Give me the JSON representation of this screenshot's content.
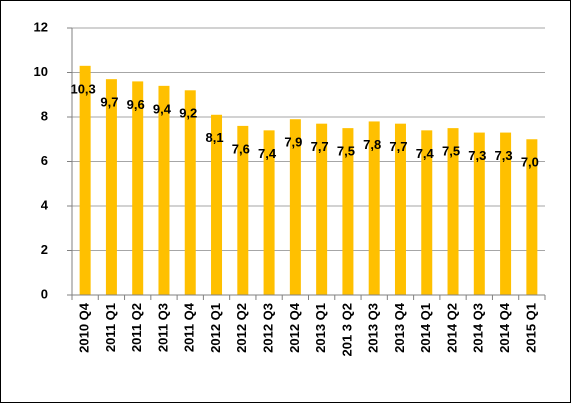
{
  "chart_data": {
    "type": "bar",
    "categories": [
      "2010 Q4",
      "2011 Q1",
      "2011 Q2",
      "2011 Q3",
      "2011 Q4",
      "2012 Q1",
      "2012 Q2",
      "2012 Q3",
      "2012 Q4",
      "2013 Q1",
      "201 3 Q2",
      "2013 Q3",
      "2013 Q4",
      "2014 Q1",
      "2014 Q2",
      "2014 Q3",
      "2014 Q4",
      "2015 Q1"
    ],
    "values": [
      10.3,
      9.7,
      9.6,
      9.4,
      9.2,
      8.1,
      7.6,
      7.4,
      7.9,
      7.7,
      7.5,
      7.8,
      7.7,
      7.4,
      7.5,
      7.3,
      7.3,
      7.0
    ],
    "value_labels": [
      "10,3",
      "9,7",
      "9,6",
      "9,4",
      "9,2",
      "8,1",
      "7,6",
      "7,4",
      "7,9",
      "7,7",
      "7,5",
      "7,8",
      "7,7",
      "7,4",
      "7,5",
      "7,3",
      "7,3",
      "7,0"
    ],
    "color": "#ffc000",
    "ylim": [
      0,
      12
    ],
    "yticks": [
      0,
      2,
      4,
      6,
      8,
      10,
      12
    ],
    "grid": true
  }
}
